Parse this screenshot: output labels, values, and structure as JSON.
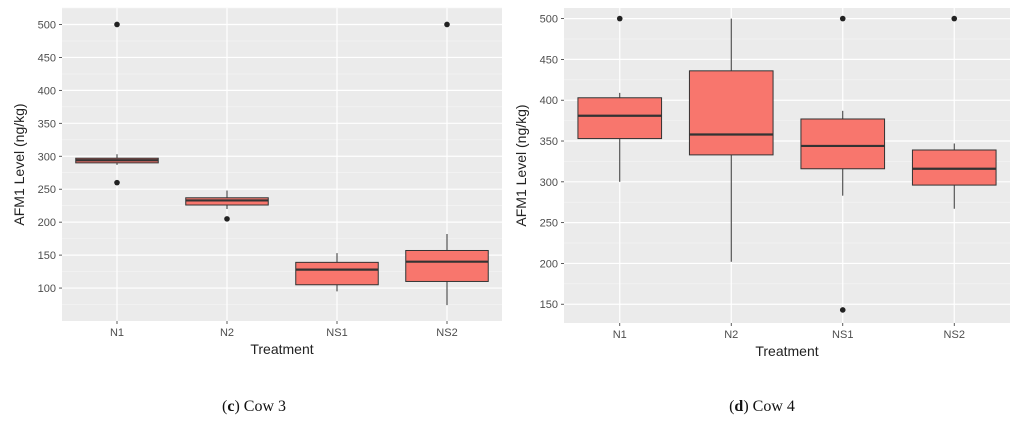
{
  "chart_data": [
    {
      "type": "boxplot",
      "xlabel": "Treatment",
      "ylabel": "AFM1 Level (ng/kg)",
      "categories": [
        "N1",
        "N2",
        "NS1",
        "NS2"
      ],
      "ylim": [
        50,
        525
      ],
      "yticks": [
        100,
        150,
        200,
        250,
        300,
        350,
        400,
        450,
        500
      ],
      "grid": true,
      "fill_color": "#F8766D",
      "boxes": [
        {
          "category": "N1",
          "whisker_low": 287,
          "q1": 290,
          "median": 294,
          "q3": 297,
          "whisker_high": 303,
          "outliers": [
            500,
            260
          ]
        },
        {
          "category": "N2",
          "whisker_low": 220,
          "q1": 226,
          "median": 233,
          "q3": 237,
          "whisker_high": 248,
          "outliers": [
            205
          ]
        },
        {
          "category": "NS1",
          "whisker_low": 95,
          "q1": 105,
          "median": 128,
          "q3": 139,
          "whisker_high": 153,
          "outliers": []
        },
        {
          "category": "NS2",
          "whisker_low": 74,
          "q1": 110,
          "median": 140,
          "q3": 157,
          "whisker_high": 182,
          "outliers": [
            500
          ]
        }
      ],
      "caption": {
        "letter": "c",
        "rest": " Cow 3"
      }
    },
    {
      "type": "boxplot",
      "xlabel": "Treatment",
      "ylabel": "AFM1 Level (ng/kg)",
      "categories": [
        "N1",
        "N2",
        "NS1",
        "NS2"
      ],
      "ylim": [
        127,
        513
      ],
      "yticks": [
        150,
        200,
        250,
        300,
        350,
        400,
        450,
        500
      ],
      "grid": true,
      "fill_color": "#F8766D",
      "boxes": [
        {
          "category": "N1",
          "whisker_low": 300,
          "q1": 353,
          "median": 381,
          "q3": 403,
          "whisker_high": 409,
          "outliers": [
            500
          ]
        },
        {
          "category": "N2",
          "whisker_low": 202,
          "q1": 333,
          "median": 358,
          "q3": 436,
          "whisker_high": 500,
          "outliers": []
        },
        {
          "category": "NS1",
          "whisker_low": 283,
          "q1": 316,
          "median": 344,
          "q3": 377,
          "whisker_high": 387,
          "outliers": [
            500,
            143
          ]
        },
        {
          "category": "NS2",
          "whisker_low": 267,
          "q1": 296,
          "median": 316,
          "q3": 339,
          "whisker_high": 347,
          "outliers": [
            500
          ]
        }
      ],
      "caption": {
        "letter": "d",
        "rest": " Cow 4"
      }
    }
  ]
}
